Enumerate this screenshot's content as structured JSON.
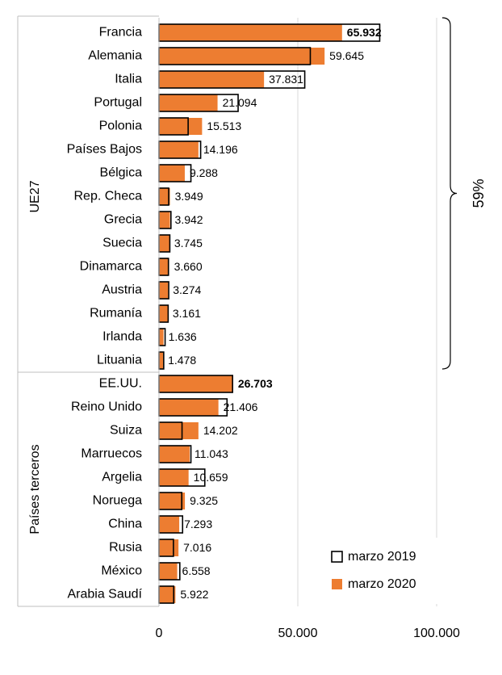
{
  "chart_data": {
    "type": "bar",
    "orientation": "horizontal",
    "categories": [
      "Francia",
      "Alemania",
      "Italia",
      "Portugal",
      "Polonia",
      "Países Bajos",
      "Bélgica",
      "Rep. Checa",
      "Grecia",
      "Suecia",
      "Dinamarca",
      "Austria",
      "Rumanía",
      "Irlanda",
      "Lituania",
      "EE.UU.",
      "Reino Unido",
      "Suiza",
      "Marruecos",
      "Argelia",
      "Noruega",
      "China",
      "Rusia",
      "México",
      "Arabia Saudí"
    ],
    "series": [
      {
        "name": "marzo 2019",
        "style": "outline",
        "color": "#000000",
        "values": [
          79500,
          54500,
          52500,
          28500,
          10500,
          15000,
          11500,
          3500,
          4300,
          3900,
          3400,
          3500,
          3300,
          2200,
          1700,
          26500,
          24500,
          8300,
          11500,
          16500,
          8200,
          8500,
          5200,
          7500,
          5300
        ]
      },
      {
        "name": "marzo 2020",
        "style": "fill",
        "color": "#ED7D31",
        "values": [
          65932,
          59645,
          37831,
          21094,
          15513,
          14196,
          9288,
          3949,
          3942,
          3745,
          3660,
          3274,
          3161,
          1636,
          1478,
          26703,
          21406,
          14202,
          11043,
          10659,
          9325,
          7293,
          7016,
          6558,
          5922
        ]
      }
    ],
    "data_labels": [
      "65.932",
      "59.645",
      "37.831",
      "21.094",
      "15.513",
      "14.196",
      "9.288",
      "3.949",
      "3.942",
      "3.745",
      "3.660",
      "3.274",
      "3.161",
      "1.636",
      "1.478",
      "26.703",
      "21.406",
      "14.202",
      "11.043",
      "10.659",
      "9.325",
      "7.293",
      "7.016",
      "6.558",
      "5.922"
    ],
    "bold_labels": [
      0,
      15
    ],
    "groups": [
      {
        "label": "UE27",
        "start": 0,
        "end": 14
      },
      {
        "label": "Países terceros",
        "start": 15,
        "end": 24
      }
    ],
    "bracket_label": "59%",
    "xlim": [
      0,
      100000
    ],
    "xticks": [
      0,
      50000,
      100000
    ],
    "xtick_labels": [
      "0",
      "50.000",
      "100.000"
    ],
    "grid": "vertical",
    "legend_position": "bottom-right"
  }
}
